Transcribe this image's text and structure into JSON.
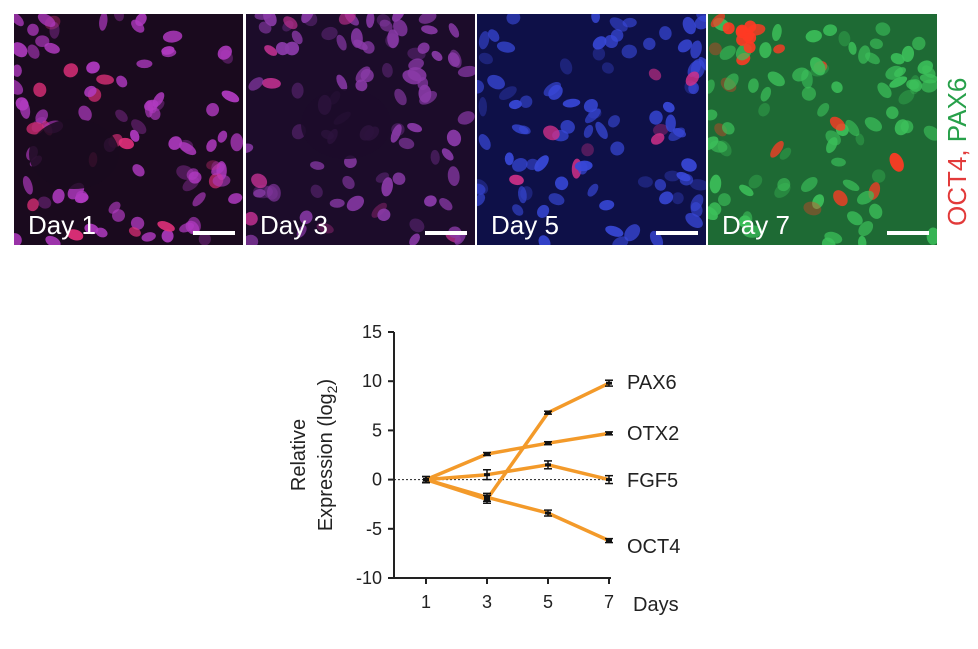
{
  "panels": [
    {
      "label": "Day 1",
      "bg": "#1a0a1e",
      "nucleus": "#b03ac0",
      "hot": "#e0307a"
    },
    {
      "label": "Day 3",
      "bg": "#1c0c2a",
      "nucleus": "#8a3aa8",
      "hot": "#c03090"
    },
    {
      "label": "Day 5",
      "bg": "#0e1048",
      "nucleus": "#3848d8",
      "hot": "#d03088"
    },
    {
      "label": "Day 7",
      "bg": "#1e6a34",
      "nucleus": "#3cc05a",
      "hot": "#ff3a24"
    }
  ],
  "stain_legend": {
    "oct4": "OCT4",
    "separator": ", ",
    "pax6": "PAX6"
  },
  "chart_data": {
    "type": "line",
    "x": [
      1,
      3,
      5,
      7
    ],
    "xlabel": "Days",
    "ylabel_main": "Relative",
    "ylabel_line2": "Expression (log",
    "ylabel_sub": "2",
    "ylabel_close": ")",
    "ylim": [
      -10,
      15
    ],
    "yticks": [
      15,
      10,
      5,
      0,
      -5,
      -10
    ],
    "xticks": [
      1,
      3,
      5,
      7
    ],
    "reference_line": 0,
    "line_color": "#f39a2a",
    "series": [
      {
        "name": "PAX6",
        "values": [
          0,
          -2.0,
          6.8,
          9.8
        ],
        "errors": [
          0.3,
          0.4,
          0.15,
          0.3
        ]
      },
      {
        "name": "OTX2",
        "values": [
          0,
          2.6,
          3.7,
          4.7
        ],
        "errors": [
          0.3,
          0.15,
          0.15,
          0.15
        ]
      },
      {
        "name": "FGF5",
        "values": [
          0,
          0.5,
          1.5,
          0.0
        ],
        "errors": [
          0.3,
          0.5,
          0.4,
          0.4
        ]
      },
      {
        "name": "OCT4",
        "values": [
          0,
          -1.8,
          -3.4,
          -6.2
        ],
        "errors": [
          0.3,
          0.4,
          0.3,
          0.2
        ]
      }
    ]
  }
}
